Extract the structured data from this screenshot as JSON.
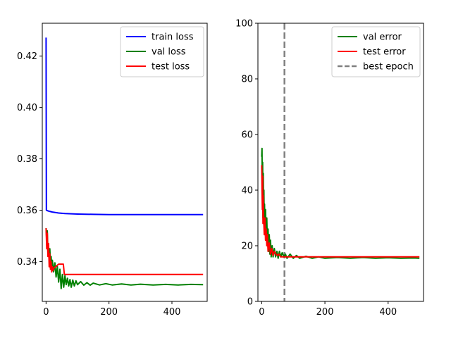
{
  "chart_data": [
    {
      "type": "line",
      "title": "",
      "xlabel": "",
      "ylabel": "",
      "xlim": [
        -12,
        512
      ],
      "ylim": [
        0.3245,
        0.4328
      ],
      "x_ticks": [
        0,
        200,
        400
      ],
      "y_ticks": [
        0.34,
        0.36,
        0.38,
        0.4,
        0.42
      ],
      "y_tick_labels": [
        "0.34",
        "0.36",
        "0.38",
        "0.40",
        "0.42"
      ],
      "legend": "top-right",
      "series": [
        {
          "name": "train loss",
          "color": "#0000ff",
          "x": [
            0,
            1,
            2,
            3,
            5,
            10,
            20,
            40,
            60,
            100,
            150,
            200,
            300,
            400,
            499
          ],
          "y": [
            0.4272,
            0.36,
            0.35995,
            0.3599,
            0.3598,
            0.3596,
            0.3593,
            0.3589,
            0.3587,
            0.3585,
            0.3584,
            0.3583,
            0.3583,
            0.3583,
            0.3583
          ]
        },
        {
          "name": "val loss",
          "color": "#008000",
          "x": [
            0,
            2,
            4,
            6,
            8,
            10,
            12,
            14,
            16,
            18,
            20,
            24,
            28,
            32,
            36,
            40,
            44,
            48,
            52,
            56,
            60,
            64,
            68,
            72,
            76,
            80,
            85,
            90,
            95,
            100,
            110,
            120,
            130,
            140,
            150,
            170,
            190,
            210,
            240,
            270,
            300,
            340,
            380,
            420,
            460,
            499
          ],
          "y": [
            0.353,
            0.348,
            0.352,
            0.344,
            0.346,
            0.341,
            0.345,
            0.339,
            0.342,
            0.338,
            0.3405,
            0.336,
            0.3395,
            0.334,
            0.338,
            0.332,
            0.337,
            0.3295,
            0.335,
            0.33,
            0.3345,
            0.331,
            0.3335,
            0.3305,
            0.333,
            0.33,
            0.3328,
            0.3305,
            0.3325,
            0.331,
            0.3322,
            0.3308,
            0.3318,
            0.3308,
            0.3316,
            0.3309,
            0.3314,
            0.3309,
            0.3313,
            0.3309,
            0.3312,
            0.3309,
            0.3311,
            0.3309,
            0.3311,
            0.331
          ]
        },
        {
          "name": "test loss",
          "color": "#ff0000",
          "x": [
            0,
            2,
            4,
            6,
            8,
            10,
            12,
            14,
            16,
            18,
            20,
            22,
            25,
            30,
            40,
            45,
            50,
            55,
            58,
            62,
            70,
            100,
            200,
            300,
            400,
            499
          ],
          "y": [
            0.353,
            0.345,
            0.351,
            0.342,
            0.347,
            0.338,
            0.343,
            0.337,
            0.34,
            0.336,
            0.338,
            0.3365,
            0.3375,
            0.338,
            0.339,
            0.339,
            0.339,
            0.339,
            0.335,
            0.335,
            0.335,
            0.335,
            0.335,
            0.335,
            0.335,
            0.335
          ]
        }
      ]
    },
    {
      "type": "line",
      "title": "",
      "xlabel": "",
      "ylabel": "",
      "xlim": [
        -12,
        512
      ],
      "ylim": [
        0,
        100
      ],
      "x_ticks": [
        0,
        200,
        400
      ],
      "y_ticks": [
        0,
        20,
        40,
        60,
        80,
        100
      ],
      "y_tick_labels": [
        "0",
        "20",
        "40",
        "60",
        "80",
        "100"
      ],
      "legend": "top-right",
      "series": [
        {
          "name": "val error",
          "color": "#008000",
          "x": [
            0,
            1,
            2,
            3,
            4,
            5,
            6,
            7,
            8,
            9,
            10,
            12,
            14,
            16,
            18,
            20,
            22,
            24,
            26,
            28,
            30,
            33,
            36,
            40,
            44,
            48,
            52,
            56,
            60,
            65,
            70,
            75,
            80,
            90,
            100,
            110,
            120,
            140,
            160,
            180,
            200,
            240,
            280,
            320,
            360,
            400,
            440,
            480,
            499
          ],
          "y": [
            52,
            55,
            38,
            50,
            30,
            46,
            34,
            40,
            27,
            35,
            24,
            33,
            22,
            30,
            20,
            26,
            18,
            24,
            17,
            22,
            16,
            20,
            16,
            19,
            16,
            18,
            15.5,
            18,
            16,
            17.5,
            16,
            17,
            15.5,
            17,
            15.5,
            16.5,
            15.5,
            16.2,
            15.5,
            16,
            15.5,
            15.8,
            15.5,
            15.8,
            15.5,
            15.7,
            15.5,
            15.6,
            15.5
          ]
        },
        {
          "name": "test error",
          "color": "#ff0000",
          "x": [
            0,
            1,
            2,
            3,
            4,
            5,
            6,
            8,
            10,
            12,
            14,
            16,
            18,
            20,
            24,
            28,
            32,
            36,
            40,
            45,
            50,
            55,
            60,
            70,
            80,
            100,
            150,
            200,
            300,
            400,
            499
          ],
          "y": [
            49,
            40,
            33,
            45,
            28,
            38,
            30,
            24,
            30,
            22,
            26,
            20,
            24,
            18,
            21,
            17,
            19,
            16.5,
            18,
            17,
            16.5,
            17,
            16,
            16,
            16,
            16,
            16,
            16,
            16,
            16,
            16
          ]
        }
      ],
      "vlines": [
        {
          "name": "best epoch",
          "color": "#808080",
          "x": 72,
          "dashed": true
        }
      ]
    }
  ]
}
